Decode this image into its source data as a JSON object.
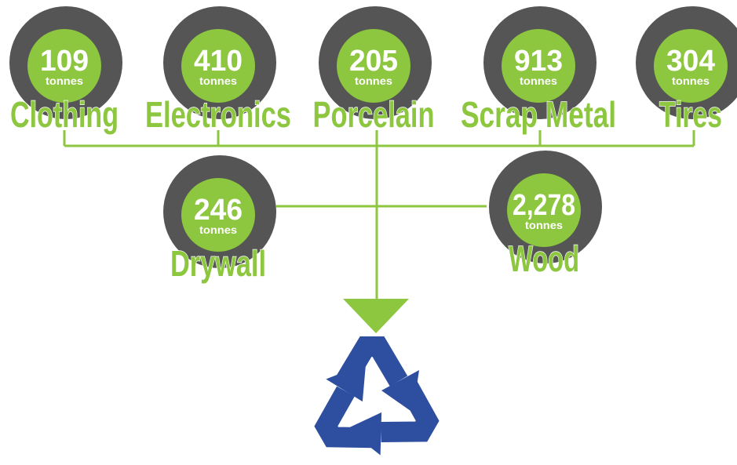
{
  "nodes": [
    {
      "value": "109",
      "unit": "tonnes",
      "label": "Clothing"
    },
    {
      "value": "410",
      "unit": "tonnes",
      "label": "Electronics"
    },
    {
      "value": "205",
      "unit": "tonnes",
      "label": "Porcelain"
    },
    {
      "value": "913",
      "unit": "tonnes",
      "label": "Scrap Metal"
    },
    {
      "value": "304",
      "unit": "tonnes",
      "label": "Tires"
    },
    {
      "value": "246",
      "unit": "tonnes",
      "label": "Drywall"
    },
    {
      "value": "2,278",
      "unit": "tonnes",
      "label": "Wood"
    }
  ]
}
